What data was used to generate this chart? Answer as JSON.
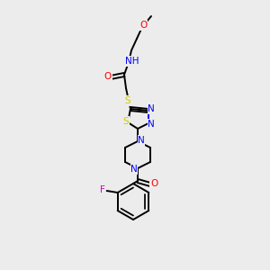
{
  "background_color": "#ececec",
  "atom_colors": {
    "N": "#0000FF",
    "O": "#FF0000",
    "S": "#CCCC00",
    "F": "#CC00CC",
    "C": "#000000"
  },
  "bond_lw": 1.4,
  "font_size": 7.5
}
